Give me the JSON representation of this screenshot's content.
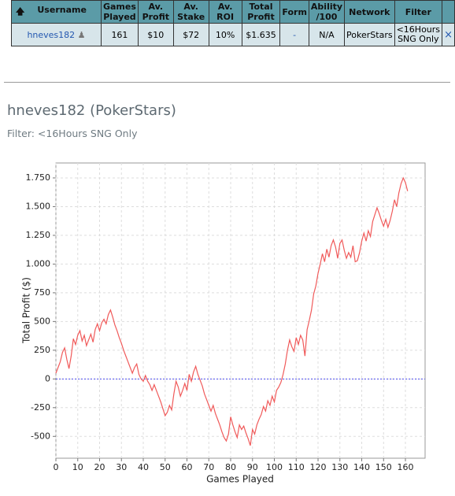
{
  "table": {
    "header": [
      "Username",
      "Games Played",
      "Av. Profit",
      "Av. Stake",
      "Av. ROI",
      "Total Profit",
      "Form",
      "Ability /100",
      "Network",
      "Filter"
    ],
    "rows": [
      [
        "hneves182",
        "161",
        "$10",
        "$72",
        "10%",
        "$1.635",
        "-",
        "N/A",
        "PokerStars",
        "<16Hours SNG Only",
        "×"
      ]
    ]
  },
  "profile": {
    "title": "hneves182 (PokerStars)",
    "filter": "Filter: <16Hours SNG Only"
  },
  "chart_data": {
    "type": "line",
    "xlabel": "Games Played",
    "ylabel": "Total Profit ($)",
    "color": "#f05a5a",
    "zero_line_color": "#4b4bf0",
    "grid": true,
    "xlim": [
      0,
      169
    ],
    "ylim": [
      -690,
      1880
    ],
    "xticks": [
      0,
      10,
      20,
      30,
      40,
      50,
      60,
      70,
      80,
      90,
      100,
      110,
      120,
      130,
      140,
      150,
      160
    ],
    "yticks": [
      -500,
      -250,
      0,
      250,
      500,
      {
        "value": 750,
        "label": "750"
      },
      {
        "value": 1000,
        "label": "1.000"
      },
      {
        "value": 1250,
        "label": "1.250"
      },
      {
        "value": 1500,
        "label": "1.500"
      },
      {
        "value": 1750,
        "label": "1.750"
      }
    ],
    "x": [
      0,
      1,
      2,
      3,
      4,
      5,
      6,
      7,
      8,
      9,
      10,
      11,
      12,
      13,
      14,
      15,
      16,
      17,
      18,
      19,
      20,
      21,
      22,
      23,
      24,
      25,
      26,
      27,
      28,
      29,
      30,
      31,
      32,
      33,
      34,
      35,
      36,
      37,
      38,
      39,
      40,
      41,
      42,
      43,
      44,
      45,
      46,
      47,
      48,
      49,
      50,
      51,
      52,
      53,
      54,
      55,
      56,
      57,
      58,
      59,
      60,
      61,
      62,
      63,
      64,
      65,
      66,
      67,
      68,
      69,
      70,
      71,
      72,
      73,
      74,
      75,
      76,
      77,
      78,
      79,
      80,
      81,
      82,
      83,
      84,
      85,
      86,
      87,
      88,
      89,
      90,
      91,
      92,
      93,
      94,
      95,
      96,
      97,
      98,
      99,
      100,
      101,
      102,
      103,
      104,
      105,
      106,
      107,
      108,
      109,
      110,
      111,
      112,
      113,
      114,
      115,
      116,
      117,
      118,
      119,
      120,
      121,
      122,
      123,
      124,
      125,
      126,
      127,
      128,
      129,
      130,
      131,
      132,
      133,
      134,
      135,
      136,
      137,
      138,
      139,
      140,
      141,
      142,
      143,
      144,
      145,
      146,
      147,
      148,
      149,
      150,
      151,
      152,
      153,
      154,
      155,
      156,
      157,
      158,
      159,
      160,
      161
    ],
    "values": [
      50,
      100,
      150,
      230,
      270,
      170,
      90,
      200,
      350,
      300,
      380,
      420,
      330,
      380,
      290,
      340,
      390,
      320,
      430,
      480,
      420,
      490,
      520,
      480,
      560,
      600,
      540,
      470,
      420,
      360,
      310,
      250,
      200,
      150,
      100,
      50,
      100,
      130,
      40,
      0,
      -20,
      30,
      -20,
      -50,
      -100,
      -50,
      -100,
      -150,
      -200,
      -260,
      -320,
      -290,
      -230,
      -270,
      -130,
      -20,
      -70,
      -150,
      -100,
      -40,
      -100,
      40,
      -20,
      60,
      110,
      40,
      -10,
      -60,
      -130,
      -180,
      -230,
      -280,
      -230,
      -300,
      -350,
      -400,
      -460,
      -510,
      -540,
      -480,
      -330,
      -400,
      -460,
      -510,
      -400,
      -440,
      -410,
      -470,
      -520,
      -580,
      -440,
      -480,
      -400,
      -350,
      -310,
      -240,
      -280,
      -190,
      -230,
      -150,
      -200,
      -100,
      -70,
      -30,
      40,
      130,
      250,
      340,
      280,
      240,
      360,
      300,
      380,
      340,
      200,
      430,
      510,
      600,
      740,
      810,
      920,
      1000,
      1090,
      1020,
      1130,
      1060,
      1160,
      1210,
      1150,
      1050,
      1180,
      1210,
      1120,
      1050,
      1100,
      1060,
      1160,
      1020,
      1030,
      1100,
      1200,
      1270,
      1200,
      1290,
      1240,
      1370,
      1430,
      1490,
      1440,
      1380,
      1330,
      1390,
      1320,
      1380,
      1460,
      1560,
      1500,
      1620,
      1700,
      1750,
      1710,
      1635
    ]
  }
}
